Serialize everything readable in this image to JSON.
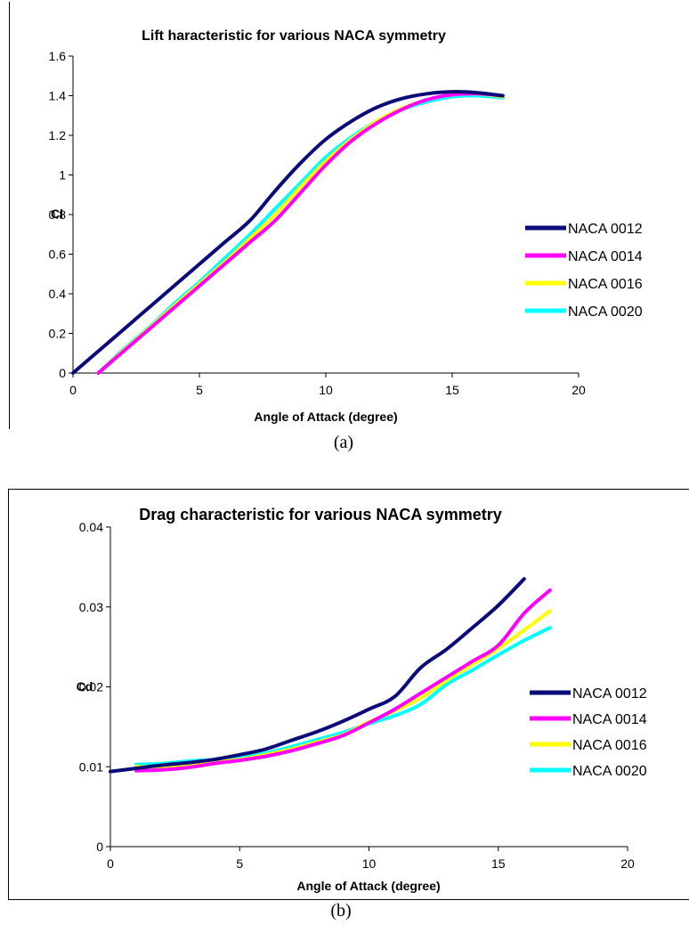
{
  "chart_data": [
    {
      "type": "line",
      "title": "Lift haracteristic for various NACA symmetry",
      "xlabel": "Angle of Attack (degree)",
      "ylabel": "Cl",
      "xlim": [
        0,
        20
      ],
      "ylim": [
        0,
        1.6
      ],
      "xticks": [
        0,
        5,
        10,
        15,
        20
      ],
      "yticks": [
        0,
        0.2,
        0.4,
        0.6,
        0.8,
        1,
        1.2,
        1.4,
        1.6
      ],
      "grid": false,
      "legend": "right",
      "series": [
        {
          "name": "NACA 0012",
          "color": "#0a0a78",
          "x": [
            0,
            1,
            2,
            3,
            4,
            5,
            6,
            7,
            8,
            9,
            10,
            11,
            12,
            13,
            14,
            15,
            16,
            17
          ],
          "y": [
            0,
            0.11,
            0.22,
            0.33,
            0.44,
            0.55,
            0.66,
            0.77,
            0.92,
            1.06,
            1.18,
            1.27,
            1.34,
            1.385,
            1.41,
            1.42,
            1.415,
            1.4
          ]
        },
        {
          "name": "NACA 0014",
          "color": "#ff00ff",
          "x": [
            1,
            2,
            3,
            4,
            5,
            6,
            7,
            8,
            9,
            10,
            11,
            12,
            13,
            14,
            15,
            16,
            17
          ],
          "y": [
            0,
            0.11,
            0.22,
            0.33,
            0.44,
            0.55,
            0.66,
            0.77,
            0.91,
            1.05,
            1.17,
            1.26,
            1.33,
            1.38,
            1.405,
            1.41,
            1.4
          ]
        },
        {
          "name": "NACA 0016",
          "color": "#ffff00",
          "x": [
            1,
            2,
            3,
            4,
            5,
            6,
            7,
            8,
            9,
            10,
            11,
            12,
            13,
            14,
            15,
            16,
            17
          ],
          "y": [
            0,
            0.115,
            0.225,
            0.34,
            0.45,
            0.56,
            0.68,
            0.8,
            0.94,
            1.07,
            1.18,
            1.27,
            1.335,
            1.38,
            1.405,
            1.41,
            1.395
          ]
        },
        {
          "name": "NACA 0020",
          "color": "#00ffff",
          "x": [
            1,
            2,
            3,
            4,
            5,
            6,
            7,
            8,
            9,
            10,
            11,
            12,
            13,
            14,
            15,
            16,
            17
          ],
          "y": [
            0,
            0.12,
            0.23,
            0.35,
            0.46,
            0.58,
            0.7,
            0.83,
            0.96,
            1.09,
            1.19,
            1.27,
            1.33,
            1.37,
            1.395,
            1.4,
            1.39
          ]
        }
      ]
    },
    {
      "type": "line",
      "title": "Drag characteristic for various NACA symmetry",
      "xlabel": "Angle of Attack (degree)",
      "ylabel": "Cd",
      "xlim": [
        0,
        20
      ],
      "ylim": [
        0,
        0.04
      ],
      "xticks": [
        0,
        5,
        10,
        15,
        20
      ],
      "yticks": [
        0,
        0.01,
        0.02,
        0.03,
        0.04
      ],
      "grid": false,
      "legend": "right",
      "series": [
        {
          "name": "NACA 0012",
          "color": "#0a0a78",
          "x": [
            0,
            1,
            2,
            3,
            4,
            5,
            6,
            7,
            8,
            9,
            10,
            11,
            12,
            13,
            14,
            15,
            16
          ],
          "y": [
            0.0094,
            0.0098,
            0.0102,
            0.0105,
            0.0109,
            0.0115,
            0.0122,
            0.0133,
            0.0144,
            0.0157,
            0.0172,
            0.0188,
            0.0224,
            0.0247,
            0.0274,
            0.0302,
            0.0335
          ]
        },
        {
          "name": "NACA 0014",
          "color": "#ff00ff",
          "x": [
            1,
            2,
            3,
            4,
            5,
            6,
            7,
            8,
            9,
            10,
            11,
            12,
            13,
            14,
            15,
            16,
            17
          ],
          "y": [
            0.0095,
            0.0096,
            0.0099,
            0.0104,
            0.0108,
            0.0113,
            0.012,
            0.0129,
            0.0139,
            0.0155,
            0.0172,
            0.0192,
            0.0212,
            0.0232,
            0.0252,
            0.0292,
            0.0321
          ]
        },
        {
          "name": "NACA 0016",
          "color": "#ffff00",
          "x": [
            1,
            2,
            3,
            4,
            5,
            6,
            7,
            8,
            9,
            10,
            11,
            12,
            13,
            14,
            15,
            16,
            17
          ],
          "y": [
            0.01,
            0.01,
            0.0102,
            0.0106,
            0.0109,
            0.0115,
            0.0122,
            0.0131,
            0.014,
            0.0156,
            0.017,
            0.0186,
            0.0208,
            0.0228,
            0.0248,
            0.0271,
            0.0295
          ]
        },
        {
          "name": "NACA 0020",
          "color": "#00ffff",
          "x": [
            1,
            2,
            3,
            4,
            5,
            6,
            7,
            8,
            9,
            10,
            11,
            12,
            13,
            14,
            15,
            16,
            17
          ],
          "y": [
            0.0103,
            0.0104,
            0.0107,
            0.0109,
            0.0112,
            0.0117,
            0.0125,
            0.0134,
            0.0143,
            0.0154,
            0.0164,
            0.0178,
            0.0203,
            0.0221,
            0.024,
            0.0258,
            0.0274
          ]
        }
      ]
    }
  ],
  "captions": {
    "a": "(a)",
    "b": "(b)"
  }
}
